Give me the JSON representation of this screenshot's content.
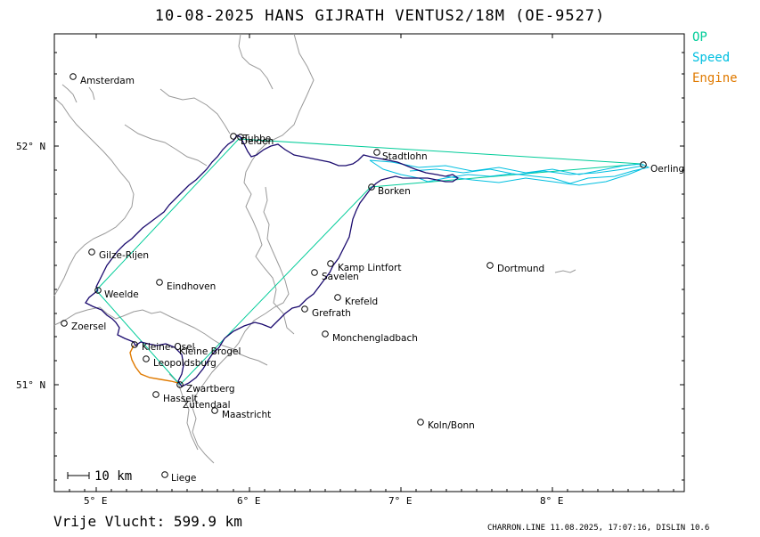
{
  "title": "10-08-2025   HANS GIJRATH   VENTUS2/18M (OE-9527)",
  "legend": [
    {
      "label": "OP",
      "color": "#00cc99"
    },
    {
      "label": "Speed",
      "color": "#00bfe0"
    },
    {
      "label": "Engine",
      "color": "#e07a00"
    }
  ],
  "footer": {
    "distance": "Vrije Vlucht:  599.9 km",
    "software": "CHARRON.LINE 11.08.2025, 17:07:16, DISLIN 10.6"
  },
  "scale_bar": "10 km",
  "axes": {
    "lon_ticks": [
      "5° E",
      "6° E",
      "7° E",
      "8° E"
    ],
    "lat_ticks": [
      "52° N",
      "51° N"
    ]
  },
  "places": [
    "Amsterdam",
    "Delden",
    "Tubbe",
    "Stadtlohn",
    "Oerling",
    "Borken",
    "Gilze-Rijen",
    "Eindhoven",
    "Weelde",
    "Zoersel",
    "Kamp Lintfort",
    "Savelen",
    "Dortmund",
    "Krefeld",
    "Grefrath",
    "Monchengladbach",
    "Kleine-Osel",
    "Kleine Brogel",
    "Leopoldsburg",
    "Zwartberg",
    "Hasselt",
    "Zutendaal",
    "Maastricht",
    "Koln/Bonn",
    "Liege"
  ],
  "colors": {
    "track": "#1a0a6e",
    "op": "#00cc99",
    "speed": "#00bfe0",
    "engine": "#e07a00",
    "border": "#9a9a9a"
  }
}
